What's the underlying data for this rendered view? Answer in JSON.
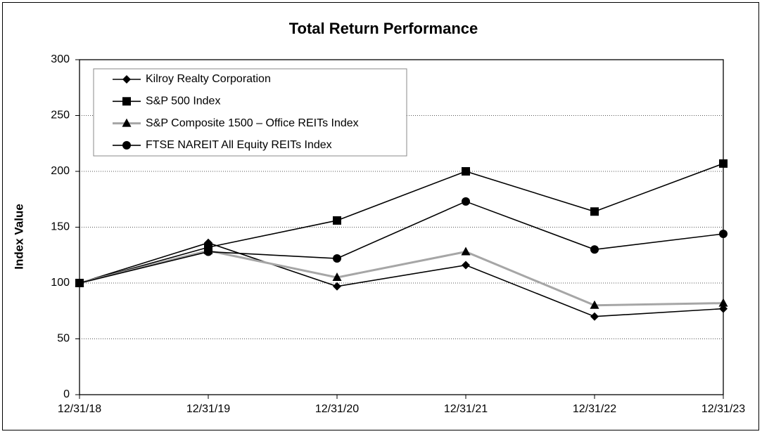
{
  "chart_data": {
    "type": "line",
    "title": "Total Return Performance",
    "y_label": "Index Value",
    "categories": [
      "12/31/18",
      "12/31/19",
      "12/31/20",
      "12/31/21",
      "12/31/22",
      "12/31/23"
    ],
    "series": [
      {
        "name": "Kilroy Realty Corporation",
        "color": "#000000",
        "marker": "diamond",
        "marker_color": "#000000",
        "values": [
          100,
          136,
          97,
          116,
          70,
          77
        ]
      },
      {
        "name": "S&P 500 Index",
        "color": "#000000",
        "marker": "square",
        "marker_color": "#000000",
        "values": [
          100,
          132,
          156,
          200,
          164,
          207
        ]
      },
      {
        "name": "S&P Composite 1500 – Office REITs Index",
        "color": "#a6a6a6",
        "marker": "triangle",
        "marker_color": "#000000",
        "values": [
          100,
          129,
          105,
          128,
          80,
          82
        ]
      },
      {
        "name": "FTSE NAREIT All Equity REITs Index",
        "color": "#000000",
        "marker": "circle",
        "marker_color": "#000000",
        "values": [
          100,
          128,
          122,
          173,
          130,
          144
        ]
      }
    ],
    "ylim": [
      0,
      300
    ],
    "yticks": [
      0,
      50,
      100,
      150,
      200,
      250,
      300
    ],
    "grid": true,
    "legend": "top-left"
  }
}
